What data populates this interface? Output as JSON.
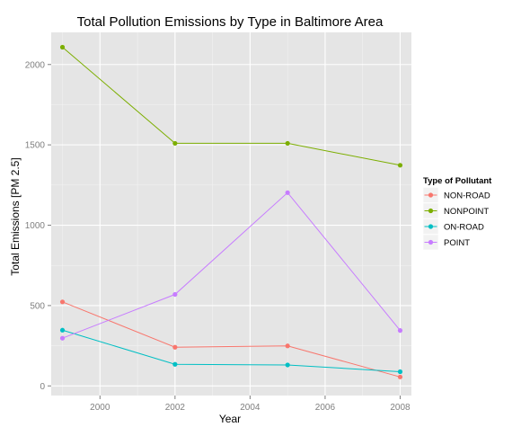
{
  "chart_data": {
    "type": "line",
    "title": "Total Pollution Emissions by Type in Baltimore Area",
    "xlabel": "Year",
    "ylabel": "Total Emissions [PM 2.5]",
    "x": [
      1999,
      2002,
      2005,
      2008
    ],
    "xlim": [
      1998.7,
      2008.3
    ],
    "ylim": [
      -60,
      2200
    ],
    "xticks": [
      2000,
      2002,
      2004,
      2006,
      2008
    ],
    "yticks": [
      0,
      500,
      1000,
      1500,
      2000
    ],
    "grid": true,
    "legend": {
      "title": "Type of Pollutant",
      "position": "right"
    },
    "series": [
      {
        "name": "NON-ROAD",
        "color": "#F8766D",
        "values": [
          522.9,
          240.8,
          248.9,
          55.8
        ]
      },
      {
        "name": "NONPOINT",
        "color": "#7CAE00",
        "values": [
          2107.6,
          1509.5,
          1509.5,
          1373.2
        ]
      },
      {
        "name": "ON-ROAD",
        "color": "#00BFC4",
        "values": [
          346.8,
          134.3,
          130.4,
          88.3
        ]
      },
      {
        "name": "POINT",
        "color": "#C77CFF",
        "values": [
          296.8,
          569.3,
          1202.5,
          344.98
        ]
      }
    ]
  }
}
